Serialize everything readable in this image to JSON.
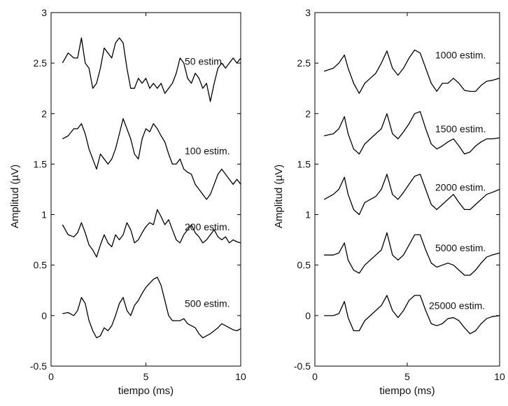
{
  "chart_data": [
    {
      "type": "line",
      "xlabel": "tiempo (ms)",
      "ylabel": "Amplitud (µV)",
      "xlim": [
        0,
        10
      ],
      "ylim": [
        -0.5,
        3
      ],
      "xticks": [
        "0",
        "5",
        "10"
      ],
      "yticks": [
        "-0.5",
        "0",
        "0.5",
        "1",
        "1.5",
        "2",
        "2.5",
        "3"
      ],
      "grid": false,
      "series": [
        {
          "name": "50 estim.",
          "x": [
            0.6,
            0.9,
            1.2,
            1.4,
            1.6,
            1.8,
            2.0,
            2.2,
            2.4,
            2.6,
            2.8,
            3.0,
            3.2,
            3.4,
            3.6,
            3.8,
            4.0,
            4.2,
            4.4,
            4.6,
            4.8,
            5.0,
            5.2,
            5.4,
            5.6,
            5.8,
            6.0,
            6.2,
            6.4,
            6.6,
            6.8,
            7.0,
            7.2,
            7.4,
            7.6,
            7.8,
            8.0,
            8.2,
            8.4,
            8.6,
            8.8,
            9.0,
            9.2,
            9.4,
            9.6,
            9.8,
            10.0
          ],
          "y": [
            2.5,
            2.6,
            2.55,
            2.55,
            2.75,
            2.5,
            2.45,
            2.25,
            2.3,
            2.45,
            2.65,
            2.6,
            2.55,
            2.7,
            2.75,
            2.7,
            2.45,
            2.25,
            2.25,
            2.35,
            2.3,
            2.35,
            2.25,
            2.3,
            2.25,
            2.3,
            2.2,
            2.25,
            2.3,
            2.4,
            2.55,
            2.5,
            2.35,
            2.3,
            2.4,
            2.35,
            2.25,
            2.3,
            2.12,
            2.3,
            2.45,
            2.5,
            2.45,
            2.5,
            2.55,
            2.5,
            2.55
          ]
        },
        {
          "name": "100 estim.",
          "x": [
            0.6,
            0.9,
            1.2,
            1.4,
            1.6,
            1.8,
            2.0,
            2.2,
            2.4,
            2.6,
            2.8,
            3.0,
            3.2,
            3.4,
            3.6,
            3.8,
            4.0,
            4.2,
            4.4,
            4.6,
            4.8,
            5.0,
            5.2,
            5.4,
            5.6,
            5.8,
            6.0,
            6.2,
            6.4,
            6.6,
            6.8,
            7.0,
            7.2,
            7.4,
            7.6,
            7.8,
            8.0,
            8.2,
            8.4,
            8.6,
            8.8,
            9.0,
            9.2,
            9.4,
            9.6,
            9.8,
            10.0
          ],
          "y": [
            1.75,
            1.78,
            1.85,
            1.85,
            1.9,
            1.8,
            1.65,
            1.55,
            1.45,
            1.6,
            1.55,
            1.5,
            1.55,
            1.65,
            1.8,
            1.95,
            1.85,
            1.75,
            1.6,
            1.55,
            1.75,
            1.85,
            1.82,
            1.9,
            1.85,
            1.78,
            1.72,
            1.6,
            1.5,
            1.5,
            1.55,
            1.45,
            1.42,
            1.4,
            1.3,
            1.25,
            1.2,
            1.15,
            1.2,
            1.3,
            1.4,
            1.45,
            1.4,
            1.35,
            1.3,
            1.35,
            1.3
          ]
        },
        {
          "name": "200 estim.",
          "x": [
            0.6,
            0.9,
            1.2,
            1.4,
            1.6,
            1.8,
            2.0,
            2.2,
            2.4,
            2.6,
            2.8,
            3.0,
            3.2,
            3.4,
            3.6,
            3.8,
            4.0,
            4.2,
            4.4,
            4.6,
            4.8,
            5.0,
            5.2,
            5.4,
            5.6,
            5.8,
            6.0,
            6.2,
            6.4,
            6.6,
            6.8,
            7.0,
            7.2,
            7.4,
            7.6,
            7.8,
            8.0,
            8.2,
            8.4,
            8.6,
            8.8,
            9.0,
            9.2,
            9.4,
            9.6,
            9.8,
            10.0
          ],
          "y": [
            0.9,
            0.8,
            0.78,
            0.82,
            0.92,
            0.82,
            0.7,
            0.65,
            0.58,
            0.7,
            0.8,
            0.72,
            0.68,
            0.8,
            0.75,
            0.8,
            0.92,
            0.85,
            0.72,
            0.75,
            0.82,
            0.88,
            0.92,
            0.9,
            1.05,
            0.98,
            0.9,
            0.95,
            0.85,
            0.75,
            0.72,
            0.8,
            0.85,
            0.9,
            0.82,
            0.78,
            0.72,
            0.75,
            0.8,
            0.85,
            0.78,
            0.75,
            0.78,
            0.72,
            0.75,
            0.73,
            0.72
          ]
        },
        {
          "name": "500 estim.",
          "x": [
            0.6,
            0.9,
            1.2,
            1.4,
            1.6,
            1.8,
            2.0,
            2.2,
            2.4,
            2.6,
            2.8,
            3.0,
            3.2,
            3.4,
            3.6,
            3.8,
            4.0,
            4.2,
            4.4,
            4.6,
            4.8,
            5.0,
            5.2,
            5.4,
            5.6,
            5.8,
            6.0,
            6.2,
            6.4,
            6.6,
            6.8,
            7.0,
            7.2,
            7.4,
            7.6,
            7.8,
            8.0,
            8.2,
            8.4,
            8.6,
            8.8,
            9.0,
            9.2,
            9.4,
            9.6,
            9.8,
            10.0
          ],
          "y": [
            0.02,
            0.03,
            0.0,
            0.05,
            0.18,
            0.12,
            -0.05,
            -0.15,
            -0.22,
            -0.2,
            -0.12,
            -0.15,
            -0.1,
            0.0,
            0.12,
            0.18,
            0.05,
            0.0,
            0.1,
            0.15,
            0.22,
            0.28,
            0.32,
            0.36,
            0.38,
            0.3,
            0.15,
            0.0,
            -0.05,
            -0.05,
            -0.05,
            -0.03,
            -0.08,
            -0.1,
            -0.12,
            -0.18,
            -0.22,
            -0.2,
            -0.18,
            -0.15,
            -0.12,
            -0.08,
            -0.1,
            -0.12,
            -0.14,
            -0.15,
            -0.13
          ]
        }
      ]
    },
    {
      "type": "line",
      "xlabel": "tiempo (ms)",
      "ylabel": "Amplitud (µV)",
      "xlim": [
        0,
        10
      ],
      "ylim": [
        -0.5,
        3
      ],
      "xticks": [
        "0",
        "5",
        "10"
      ],
      "yticks": [
        "-0.5",
        "0",
        "0.5",
        "1",
        "1.5",
        "2",
        "2.5",
        "3"
      ],
      "grid": false,
      "series": [
        {
          "name": "1000 estim.",
          "x": [
            0.5,
            1.0,
            1.3,
            1.6,
            1.8,
            2.1,
            2.4,
            2.7,
            3.0,
            3.3,
            3.6,
            3.9,
            4.2,
            4.5,
            4.8,
            5.1,
            5.4,
            5.7,
            6.0,
            6.3,
            6.6,
            6.9,
            7.2,
            7.5,
            7.8,
            8.1,
            8.4,
            8.7,
            9.0,
            9.3,
            9.6,
            10.0
          ],
          "y": [
            2.42,
            2.45,
            2.5,
            2.58,
            2.45,
            2.3,
            2.2,
            2.3,
            2.35,
            2.4,
            2.5,
            2.62,
            2.45,
            2.38,
            2.45,
            2.55,
            2.63,
            2.6,
            2.45,
            2.3,
            2.22,
            2.3,
            2.3,
            2.35,
            2.3,
            2.23,
            2.22,
            2.22,
            2.28,
            2.32,
            2.33,
            2.35
          ]
        },
        {
          "name": "1500 estim.",
          "x": [
            0.5,
            1.0,
            1.3,
            1.6,
            1.8,
            2.1,
            2.4,
            2.7,
            3.0,
            3.3,
            3.6,
            3.9,
            4.2,
            4.5,
            4.8,
            5.1,
            5.4,
            5.7,
            6.0,
            6.3,
            6.6,
            6.9,
            7.2,
            7.5,
            7.8,
            8.1,
            8.4,
            8.7,
            9.0,
            9.3,
            9.6,
            10.0
          ],
          "y": [
            1.78,
            1.8,
            1.85,
            1.97,
            1.8,
            1.65,
            1.6,
            1.7,
            1.75,
            1.8,
            1.85,
            2.0,
            1.8,
            1.75,
            1.82,
            1.9,
            2.0,
            2.02,
            1.85,
            1.7,
            1.65,
            1.68,
            1.72,
            1.75,
            1.68,
            1.6,
            1.62,
            1.68,
            1.72,
            1.75,
            1.75,
            1.76
          ]
        },
        {
          "name": "2000 estim.",
          "x": [
            0.5,
            1.0,
            1.3,
            1.6,
            1.8,
            2.1,
            2.4,
            2.7,
            3.0,
            3.3,
            3.6,
            3.9,
            4.2,
            4.5,
            4.8,
            5.1,
            5.4,
            5.7,
            6.0,
            6.3,
            6.6,
            6.9,
            7.2,
            7.5,
            7.8,
            8.1,
            8.4,
            8.7,
            9.0,
            9.3,
            9.6,
            10.0
          ],
          "y": [
            1.15,
            1.2,
            1.25,
            1.37,
            1.2,
            1.05,
            1.0,
            1.12,
            1.15,
            1.18,
            1.25,
            1.4,
            1.2,
            1.15,
            1.22,
            1.3,
            1.38,
            1.4,
            1.25,
            1.1,
            1.05,
            1.1,
            1.15,
            1.2,
            1.12,
            1.05,
            1.05,
            1.1,
            1.15,
            1.2,
            1.22,
            1.25
          ]
        },
        {
          "name": "5000 estim.",
          "x": [
            0.5,
            1.0,
            1.3,
            1.6,
            1.8,
            2.1,
            2.4,
            2.7,
            3.0,
            3.3,
            3.6,
            3.9,
            4.2,
            4.5,
            4.8,
            5.1,
            5.4,
            5.7,
            6.0,
            6.3,
            6.6,
            6.9,
            7.2,
            7.5,
            7.8,
            8.1,
            8.4,
            8.7,
            9.0,
            9.3,
            9.6,
            10.0
          ],
          "y": [
            0.6,
            0.6,
            0.62,
            0.72,
            0.55,
            0.45,
            0.42,
            0.5,
            0.55,
            0.6,
            0.65,
            0.82,
            0.6,
            0.55,
            0.6,
            0.7,
            0.8,
            0.8,
            0.65,
            0.52,
            0.48,
            0.5,
            0.52,
            0.5,
            0.45,
            0.4,
            0.4,
            0.45,
            0.52,
            0.58,
            0.6,
            0.62
          ]
        },
        {
          "name": "25000 estim.",
          "x": [
            0.5,
            1.0,
            1.3,
            1.6,
            1.8,
            2.1,
            2.4,
            2.7,
            3.0,
            3.3,
            3.6,
            3.9,
            4.2,
            4.5,
            4.8,
            5.1,
            5.4,
            5.7,
            6.0,
            6.3,
            6.6,
            6.9,
            7.2,
            7.5,
            7.8,
            8.1,
            8.4,
            8.7,
            9.0,
            9.3,
            9.6,
            10.0
          ],
          "y": [
            0.0,
            0.0,
            0.02,
            0.14,
            -0.02,
            -0.15,
            -0.15,
            -0.05,
            0.0,
            0.05,
            0.1,
            0.2,
            0.05,
            -0.02,
            0.05,
            0.15,
            0.2,
            0.2,
            0.05,
            -0.08,
            -0.1,
            -0.08,
            -0.03,
            -0.02,
            -0.05,
            -0.12,
            -0.18,
            -0.15,
            -0.08,
            -0.03,
            -0.01,
            0.0
          ]
        }
      ]
    }
  ]
}
